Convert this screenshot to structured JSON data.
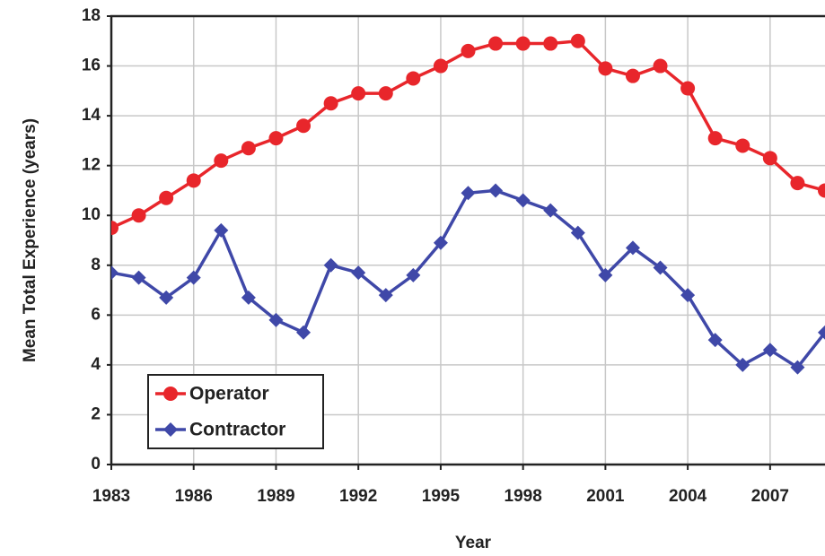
{
  "chart_data": {
    "type": "line",
    "x_label": "Year",
    "y_label": "Mean Total Experience (years)",
    "x": [
      1983,
      1984,
      1985,
      1986,
      1987,
      1988,
      1989,
      1990,
      1991,
      1992,
      1993,
      1994,
      1995,
      1996,
      1997,
      1998,
      1999,
      2000,
      2001,
      2002,
      2003,
      2004,
      2005,
      2006,
      2007,
      2008,
      2009
    ],
    "series": [
      {
        "name": "Operator",
        "color": "#e8262b",
        "marker": "circle",
        "values": [
          9.5,
          10.0,
          10.7,
          11.4,
          12.2,
          12.7,
          13.1,
          13.6,
          14.5,
          14.9,
          14.9,
          15.5,
          16.0,
          16.6,
          16.9,
          16.9,
          16.9,
          17.0,
          15.9,
          15.6,
          16.0,
          15.1,
          13.1,
          12.8,
          12.3,
          11.3,
          11.0
        ]
      },
      {
        "name": "Contractor",
        "color": "#3f48a8",
        "marker": "diamond",
        "values": [
          7.7,
          7.5,
          6.7,
          7.5,
          9.4,
          6.7,
          5.8,
          5.3,
          8.0,
          7.7,
          6.8,
          7.6,
          8.9,
          10.9,
          11.0,
          10.6,
          10.2,
          9.3,
          7.6,
          8.7,
          7.9,
          6.8,
          5.0,
          4.0,
          4.6,
          3.9,
          5.3
        ]
      }
    ],
    "xlim": [
      1983,
      2009
    ],
    "xticks": [
      1983,
      1986,
      1989,
      1992,
      1995,
      1998,
      2001,
      2004,
      2007
    ],
    "ylim": [
      0,
      18
    ],
    "yticks": [
      0,
      2,
      4,
      6,
      8,
      10,
      12,
      14,
      16,
      18
    ],
    "grid": true,
    "legend": "lower left"
  }
}
